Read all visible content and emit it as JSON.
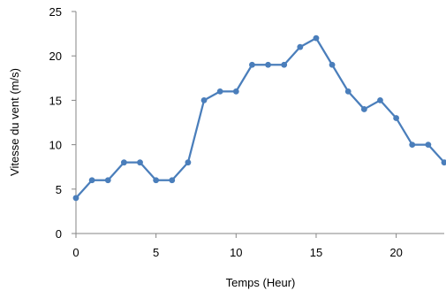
{
  "chart_data": {
    "type": "line",
    "title": "",
    "xlabel": "Temps (Heur)",
    "ylabel": "Vitesse du vent (m/s)",
    "xlim": [
      0,
      23
    ],
    "ylim": [
      0,
      25
    ],
    "x_ticks": [
      0,
      5,
      10,
      15,
      20
    ],
    "y_ticks": [
      0,
      5,
      10,
      15,
      20,
      25
    ],
    "grid": false,
    "legend": "none",
    "series": [
      {
        "color": "#4a7ebb",
        "x": [
          0,
          1,
          2,
          3,
          4,
          5,
          6,
          7,
          8,
          9,
          10,
          11,
          12,
          13,
          14,
          15,
          16,
          17,
          18,
          19,
          20,
          21,
          22,
          23
        ],
        "y": [
          4,
          6,
          6,
          8,
          8,
          6,
          6,
          8,
          15,
          16,
          16,
          19,
          19,
          19,
          21,
          22,
          19,
          16,
          14,
          15,
          13,
          10,
          10,
          8
        ]
      }
    ]
  }
}
